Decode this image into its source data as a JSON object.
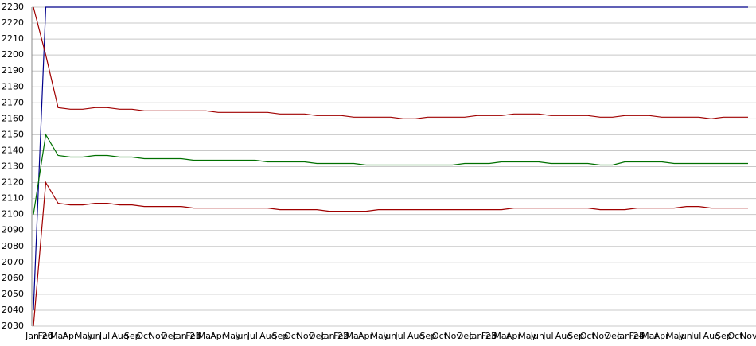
{
  "chart_data": {
    "type": "line",
    "categories": [
      "Jan 20",
      "Feb",
      "Mar",
      "Apr",
      "May",
      "Jun",
      "Jul",
      "Aug",
      "Sep",
      "Oct",
      "Nov",
      "Dec",
      "Jan 21",
      "Feb",
      "Mar",
      "Apr",
      "May",
      "Jun",
      "Jul",
      "Aug",
      "Sep",
      "Oct",
      "Nov",
      "Dec",
      "Jan 22",
      "Feb",
      "Mar",
      "Apr",
      "May",
      "Jun",
      "Jul",
      "Aug",
      "Sep",
      "Oct",
      "Nov",
      "Dec",
      "Jan 23",
      "Feb",
      "Mar",
      "Apr",
      "May",
      "Jun",
      "Jul",
      "Aug",
      "Sep",
      "Oct",
      "Nov",
      "Dec",
      "Jan 24",
      "Feb",
      "Mar",
      "Apr",
      "May",
      "Jun",
      "Jul",
      "Aug",
      "Sep",
      "Oct",
      "Nov"
    ],
    "series": [
      {
        "color": "#00008b",
        "values": [
          2040,
          2230,
          2230,
          2230,
          2230,
          2230,
          2230,
          2230,
          2230,
          2230,
          2230,
          2230,
          2230,
          2230,
          2230,
          2230,
          2230,
          2230,
          2230,
          2230,
          2230,
          2230,
          2230,
          2230,
          2230,
          2230,
          2230,
          2230,
          2230,
          2230,
          2230,
          2230,
          2230,
          2230,
          2230,
          2230,
          2230,
          2230,
          2230,
          2230,
          2230,
          2230,
          2230,
          2230,
          2230,
          2230,
          2230,
          2230,
          2230,
          2230,
          2230,
          2230,
          2230,
          2230,
          2230,
          2230,
          2230,
          2230,
          2230
        ]
      },
      {
        "color": "#a00000",
        "values": [
          2230,
          2200,
          2167,
          2166,
          2166,
          2167,
          2167,
          2166,
          2166,
          2165,
          2165,
          2165,
          2165,
          2165,
          2165,
          2164,
          2164,
          2164,
          2164,
          2164,
          2163,
          2163,
          2163,
          2162,
          2162,
          2162,
          2161,
          2161,
          2161,
          2161,
          2160,
          2160,
          2161,
          2161,
          2161,
          2161,
          2162,
          2162,
          2162,
          2163,
          2163,
          2163,
          2162,
          2162,
          2162,
          2162,
          2161,
          2161,
          2162,
          2162,
          2162,
          2161,
          2161,
          2161,
          2161,
          2160,
          2161,
          2161,
          2161
        ]
      },
      {
        "color": "#007000",
        "values": [
          2100,
          2150,
          2137,
          2136,
          2136,
          2137,
          2137,
          2136,
          2136,
          2135,
          2135,
          2135,
          2135,
          2134,
          2134,
          2134,
          2134,
          2134,
          2134,
          2133,
          2133,
          2133,
          2133,
          2132,
          2132,
          2132,
          2132,
          2131,
          2131,
          2131,
          2131,
          2131,
          2131,
          2131,
          2131,
          2132,
          2132,
          2132,
          2133,
          2133,
          2133,
          2133,
          2132,
          2132,
          2132,
          2132,
          2131,
          2131,
          2133,
          2133,
          2133,
          2133,
          2132,
          2132,
          2132,
          2132,
          2132,
          2132,
          2132
        ]
      },
      {
        "color": "#a00000",
        "values": [
          2030,
          2120,
          2107,
          2106,
          2106,
          2107,
          2107,
          2106,
          2106,
          2105,
          2105,
          2105,
          2105,
          2104,
          2104,
          2104,
          2104,
          2104,
          2104,
          2104,
          2103,
          2103,
          2103,
          2103,
          2102,
          2102,
          2102,
          2102,
          2103,
          2103,
          2103,
          2103,
          2103,
          2103,
          2103,
          2103,
          2103,
          2103,
          2103,
          2104,
          2104,
          2104,
          2104,
          2104,
          2104,
          2104,
          2103,
          2103,
          2103,
          2104,
          2104,
          2104,
          2104,
          2105,
          2105,
          2104,
          2104,
          2104,
          2104
        ]
      }
    ],
    "ylim": [
      2030,
      2230
    ],
    "yticks": [
      2030,
      2040,
      2050,
      2060,
      2070,
      2080,
      2090,
      2100,
      2110,
      2120,
      2130,
      2140,
      2150,
      2160,
      2170,
      2180,
      2190,
      2200,
      2210,
      2220,
      2230
    ],
    "grid": true
  }
}
